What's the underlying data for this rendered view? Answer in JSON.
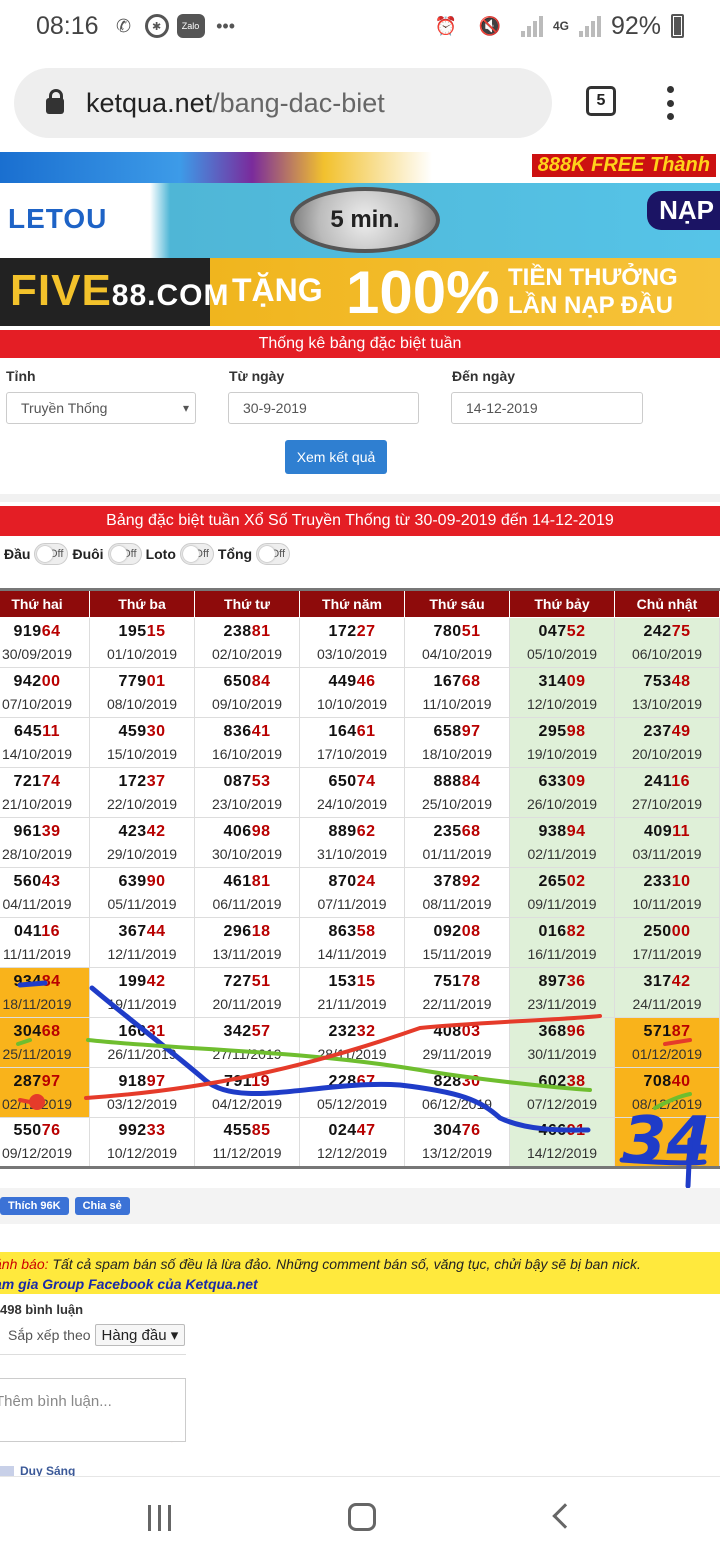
{
  "status": {
    "time": "08:16",
    "network": "4G",
    "battery": "92%",
    "zalo": "Zalo",
    "dots": "•••"
  },
  "browser": {
    "url_domain": "ketqua.net",
    "url_path": "/bang-dac-biet",
    "tab_count": "5"
  },
  "banners": {
    "b1_text": "888K FREE Thành",
    "b2_logo": "LETOU",
    "b2_clock": "5 min.",
    "b2_nap": "NẠP",
    "b3_five": "FIVE",
    "b3_domain": "88.COM",
    "b3_tang": "TẶNG",
    "b3_pct": "100%",
    "b3_line1": "TIỀN THƯỞNG",
    "b3_line2": "LẦN NẠP ĐẦU"
  },
  "form": {
    "title": "Thống kê bảng đặc biệt tuần",
    "tinh_label": "Tỉnh",
    "tinh_value": "Truyền Thống",
    "from_label": "Từ ngày",
    "from_value": "30-9-2019",
    "to_label": "Đến ngày",
    "to_value": "14-12-2019",
    "submit": "Xem kết quả"
  },
  "results_title": "Bảng đặc biệt tuần Xổ Số Truyền Thống từ 30-09-2019 đến 14-12-2019",
  "toggles": [
    {
      "label": "Đầu",
      "state": "Off"
    },
    {
      "label": "Đuôi",
      "state": "Off"
    },
    {
      "label": "Loto",
      "state": "Off"
    },
    {
      "label": "Tổng",
      "state": "Off"
    }
  ],
  "table": {
    "headers": [
      "Thứ hai",
      "Thứ ba",
      "Thứ tư",
      "Thứ năm",
      "Thứ sáu",
      "Thứ bảy",
      "Chủ nhật"
    ],
    "rows": [
      [
        [
          "919",
          "64",
          "30/09/2019"
        ],
        [
          "195",
          "15",
          "01/10/2019"
        ],
        [
          "238",
          "81",
          "02/10/2019"
        ],
        [
          "172",
          "27",
          "03/10/2019"
        ],
        [
          "780",
          "51",
          "04/10/2019"
        ],
        [
          "047",
          "52",
          "05/10/2019"
        ],
        [
          "242",
          "75",
          "06/10/2019"
        ]
      ],
      [
        [
          "942",
          "00",
          "07/10/2019"
        ],
        [
          "779",
          "01",
          "08/10/2019"
        ],
        [
          "650",
          "84",
          "09/10/2019"
        ],
        [
          "449",
          "46",
          "10/10/2019"
        ],
        [
          "167",
          "68",
          "11/10/2019"
        ],
        [
          "314",
          "09",
          "12/10/2019"
        ],
        [
          "753",
          "48",
          "13/10/2019"
        ]
      ],
      [
        [
          "645",
          "11",
          "14/10/2019"
        ],
        [
          "459",
          "30",
          "15/10/2019"
        ],
        [
          "836",
          "41",
          "16/10/2019"
        ],
        [
          "164",
          "61",
          "17/10/2019"
        ],
        [
          "658",
          "97",
          "18/10/2019"
        ],
        [
          "295",
          "98",
          "19/10/2019"
        ],
        [
          "237",
          "49",
          "20/10/2019"
        ]
      ],
      [
        [
          "721",
          "74",
          "21/10/2019"
        ],
        [
          "172",
          "37",
          "22/10/2019"
        ],
        [
          "087",
          "53",
          "23/10/2019"
        ],
        [
          "650",
          "74",
          "24/10/2019"
        ],
        [
          "888",
          "84",
          "25/10/2019"
        ],
        [
          "633",
          "09",
          "26/10/2019"
        ],
        [
          "241",
          "16",
          "27/10/2019"
        ]
      ],
      [
        [
          "961",
          "39",
          "28/10/2019"
        ],
        [
          "423",
          "42",
          "29/10/2019"
        ],
        [
          "406",
          "98",
          "30/10/2019"
        ],
        [
          "889",
          "62",
          "31/10/2019"
        ],
        [
          "235",
          "68",
          "01/11/2019"
        ],
        [
          "938",
          "94",
          "02/11/2019"
        ],
        [
          "409",
          "11",
          "03/11/2019"
        ]
      ],
      [
        [
          "560",
          "43",
          "04/11/2019"
        ],
        [
          "639",
          "90",
          "05/11/2019"
        ],
        [
          "461",
          "81",
          "06/11/2019"
        ],
        [
          "870",
          "24",
          "07/11/2019"
        ],
        [
          "378",
          "92",
          "08/11/2019"
        ],
        [
          "265",
          "02",
          "09/11/2019"
        ],
        [
          "233",
          "10",
          "10/11/2019"
        ]
      ],
      [
        [
          "041",
          "16",
          "11/11/2019"
        ],
        [
          "367",
          "44",
          "12/11/2019"
        ],
        [
          "296",
          "18",
          "13/11/2019"
        ],
        [
          "863",
          "58",
          "14/11/2019"
        ],
        [
          "092",
          "08",
          "15/11/2019"
        ],
        [
          "016",
          "82",
          "16/11/2019"
        ],
        [
          "250",
          "00",
          "17/11/2019"
        ]
      ],
      [
        [
          "934",
          "84",
          "18/11/2019"
        ],
        [
          "199",
          "42",
          "19/11/2019"
        ],
        [
          "727",
          "51",
          "20/11/2019"
        ],
        [
          "153",
          "15",
          "21/11/2019"
        ],
        [
          "751",
          "78",
          "22/11/2019"
        ],
        [
          "897",
          "36",
          "23/11/2019"
        ],
        [
          "317",
          "42",
          "24/11/2019"
        ]
      ],
      [
        [
          "304",
          "68",
          "25/11/2019"
        ],
        [
          "160",
          "31",
          "26/11/2019"
        ],
        [
          "342",
          "57",
          "27/11/2019"
        ],
        [
          "232",
          "32",
          "28/11/2019"
        ],
        [
          "408",
          "03",
          "29/11/2019"
        ],
        [
          "368",
          "96",
          "30/11/2019"
        ],
        [
          "571",
          "87",
          "01/12/2019"
        ]
      ],
      [
        [
          "287",
          "97",
          "02/12/2019"
        ],
        [
          "918",
          "97",
          "03/12/2019"
        ],
        [
          "791",
          "19",
          "04/12/2019"
        ],
        [
          "228",
          "67",
          "05/12/2019"
        ],
        [
          "828",
          "30",
          "06/12/2019"
        ],
        [
          "602",
          "38",
          "07/12/2019"
        ],
        [
          "708",
          "40",
          "08/12/2019"
        ]
      ],
      [
        [
          "550",
          "76",
          "09/12/2019"
        ],
        [
          "992",
          "33",
          "10/12/2019"
        ],
        [
          "455",
          "85",
          "11/12/2019"
        ],
        [
          "024",
          "47",
          "12/12/2019"
        ],
        [
          "304",
          "76",
          "13/12/2019"
        ],
        [
          "466",
          "91",
          "14/12/2019"
        ],
        null
      ]
    ]
  },
  "social": {
    "like": "Thích 96K",
    "share": "Chia sẻ"
  },
  "warning": {
    "prefix": "ảnh báo:",
    "line1": " Tất cả spam bán số đều là lừa đảo. Những comment bán số, văng tục, chửi bậy sẽ bị ban nick.",
    "line2": "am gia Group Facebook của Ketqua.net"
  },
  "comments": {
    "count": "498 bình luận",
    "sort_label": "Sắp xếp theo",
    "sort_value": "Hàng đầu",
    "placeholder": "Thêm bình luận...",
    "first_user": "Duy Sáng"
  },
  "annotation": {
    "handwritten": "34"
  }
}
